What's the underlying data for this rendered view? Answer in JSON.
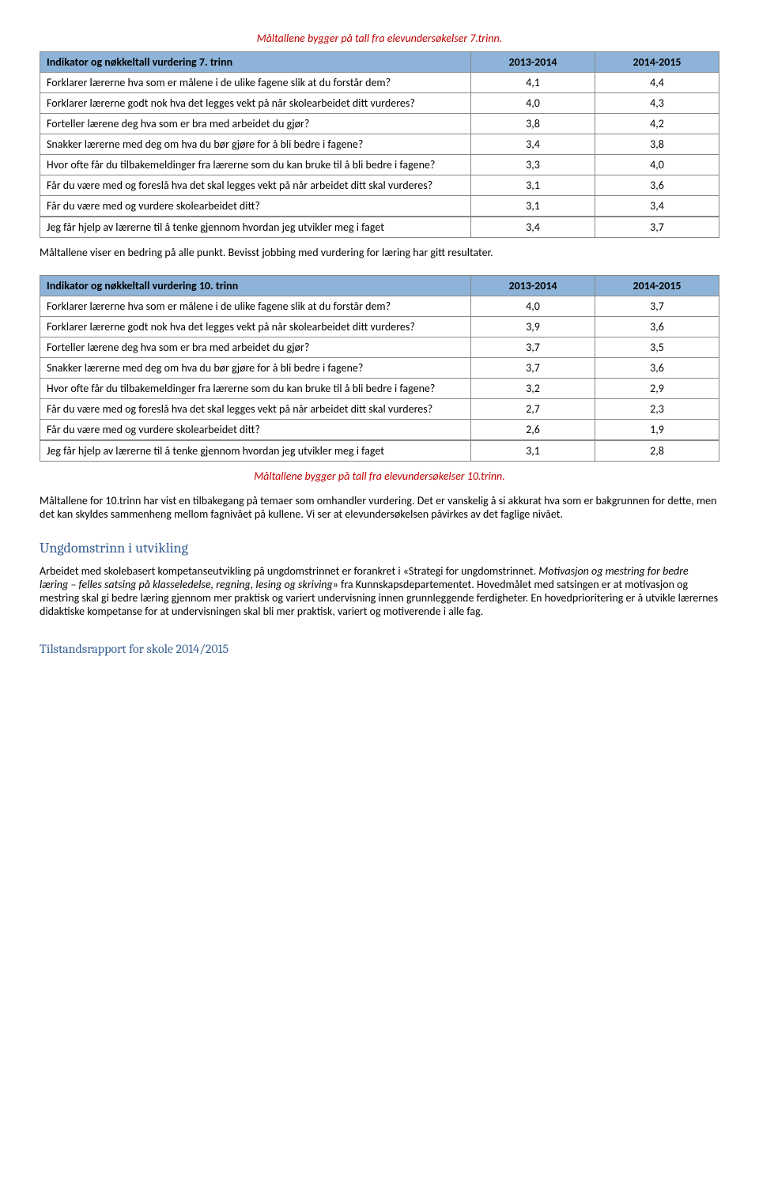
{
  "caption1": "Måltallene bygger på tall fra elevundersøkelser 7.trinn.",
  "table1": {
    "header": "Indikator og nøkkeltall vurdering 7. trinn",
    "y1": "2013-2014",
    "y2": "2014-2015",
    "rows": [
      {
        "label": "Forklarer lærerne hva som er målene i de ulike fagene slik at du forstår dem?",
        "v1": "4,1",
        "v2": "4,4"
      },
      {
        "label": "Forklarer lærerne godt nok hva det legges vekt på når skolearbeidet ditt vurderes?",
        "v1": "4,0",
        "v2": "4,3"
      },
      {
        "label": "Forteller lærene deg hva som er bra med arbeidet du gjør?",
        "v1": "3,8",
        "v2": "4,2"
      },
      {
        "label": "Snakker lærerne med deg om hva du bør gjøre for å bli bedre i fagene?",
        "v1": "3,4",
        "v2": "3,8"
      },
      {
        "label": "Hvor ofte får du tilbakemeldinger fra lærerne som du kan bruke til å bli bedre i fagene?",
        "v1": "3,3",
        "v2": "4,0"
      },
      {
        "label": "Får du være med og foreslå hva det skal legges vekt på når arbeidet ditt skal vurderes?",
        "v1": "3,1",
        "v2": "3,6"
      },
      {
        "label": "Får du være med og vurdere skolearbeidet ditt?",
        "v1": "3,1",
        "v2": "3,4"
      },
      {
        "label": "Jeg får hjelp av lærerne til å tenke gjennom hvordan jeg utvikler meg i faget",
        "v1": "3,4",
        "v2": "3,7"
      }
    ]
  },
  "para1": "Måltallene viser en bedring på alle punkt. Bevisst jobbing med vurdering for læring har gitt resultater.",
  "table2": {
    "header": "Indikator og nøkkeltall vurdering 10. trinn",
    "y1": "2013-2014",
    "y2": "2014-2015",
    "rows": [
      {
        "label": "Forklarer lærerne hva som er målene i de ulike fagene slik at du forstår dem?",
        "v1": "4,0",
        "v2": "3,7"
      },
      {
        "label": "Forklarer lærerne godt nok hva det legges vekt på når skolearbeidet ditt vurderes?",
        "v1": "3,9",
        "v2": "3,6"
      },
      {
        "label": "Forteller lærene deg hva som er bra med arbeidet du gjør?",
        "v1": "3,7",
        "v2": "3,5"
      },
      {
        "label": "Snakker lærerne med deg om hva du bør gjøre for å bli bedre i fagene?",
        "v1": "3,7",
        "v2": "3,6"
      },
      {
        "label": "Hvor ofte får du tilbakemeldinger fra lærerne som du kan bruke til å bli bedre i fagene?",
        "v1": "3,2",
        "v2": "2,9"
      },
      {
        "label": "Får du være med og foreslå hva det skal legges vekt på når arbeidet ditt skal vurderes?",
        "v1": "2,7",
        "v2": "2,3"
      },
      {
        "label": "Får du være med og vurdere skolearbeidet ditt?",
        "v1": "2,6",
        "v2": "1,9"
      },
      {
        "label": "Jeg får hjelp av lærerne til å tenke gjennom hvordan jeg utvikler meg i faget",
        "v1": "3,1",
        "v2": "2,8"
      }
    ]
  },
  "caption2": "Måltallene bygger på tall fra elevundersøkelser 10.trinn.",
  "para2": "Måltallene for 10.trinn har vist en tilbakegang på temaer som omhandler vurdering. Det er vanskelig å si akkurat hva som er bakgrunnen for dette, men det kan skyldes sammenheng mellom fagnivået på kullene. Vi ser at elevundersøkelsen påvirkes av det faglige nivået.",
  "heading1": "Ungdomstrinn i utvikling",
  "para3a": "Arbeidet med skolebasert kompetanseutvikling på ungdomstrinnet er forankret i «Strategi for ungdomstrinnet. ",
  "para3b": "Motivasjon og mestring for bedre læring – felles satsing på klasseledelse, regning, lesing og skriving",
  "para3c": "» fra Kunnskapsdepartementet. Hovedmålet med satsingen er at motivasjon og mestring skal gi bedre læring gjennom mer praktisk og variert undervisning innen grunnleggende ferdigheter. En hovedprioritering er å utvikle lærernes didaktiske kompetanse for at undervisningen skal bli mer praktisk, variert og motiverende i alle fag.",
  "footer": "Tilstandsrapport for skole 2014/2015"
}
